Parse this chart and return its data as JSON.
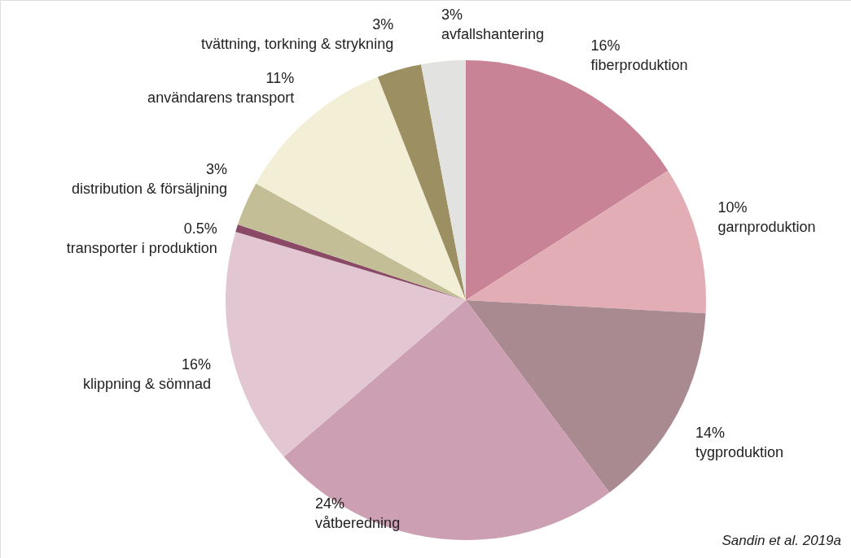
{
  "chart_data": {
    "type": "pie",
    "categories": [
      "fiberproduktion",
      "garnproduktion",
      "tygproduktion",
      "våtberedning",
      "klippning & sömnad",
      "transporter i produktion",
      "distribution & försäljning",
      "användarens transport",
      "tvättning, torkning & strykning",
      "avfallshantering"
    ],
    "values": [
      16,
      10,
      14,
      24,
      16,
      0.5,
      3,
      11,
      3,
      3
    ],
    "value_labels": [
      "16%",
      "10%",
      "14%",
      "24%",
      "16%",
      "0.5%",
      "3%",
      "11%",
      "3%",
      "3%"
    ],
    "colors": [
      "#c88496",
      "#e3adb6",
      "#a98a91",
      "#cc9fb3",
      "#e2c6d2",
      "#8a4a66",
      "#c4be96",
      "#f3eed6",
      "#9c9063",
      "#e2e2e0"
    ],
    "annotations": [
      "Sandin et al. 2019a"
    ]
  }
}
